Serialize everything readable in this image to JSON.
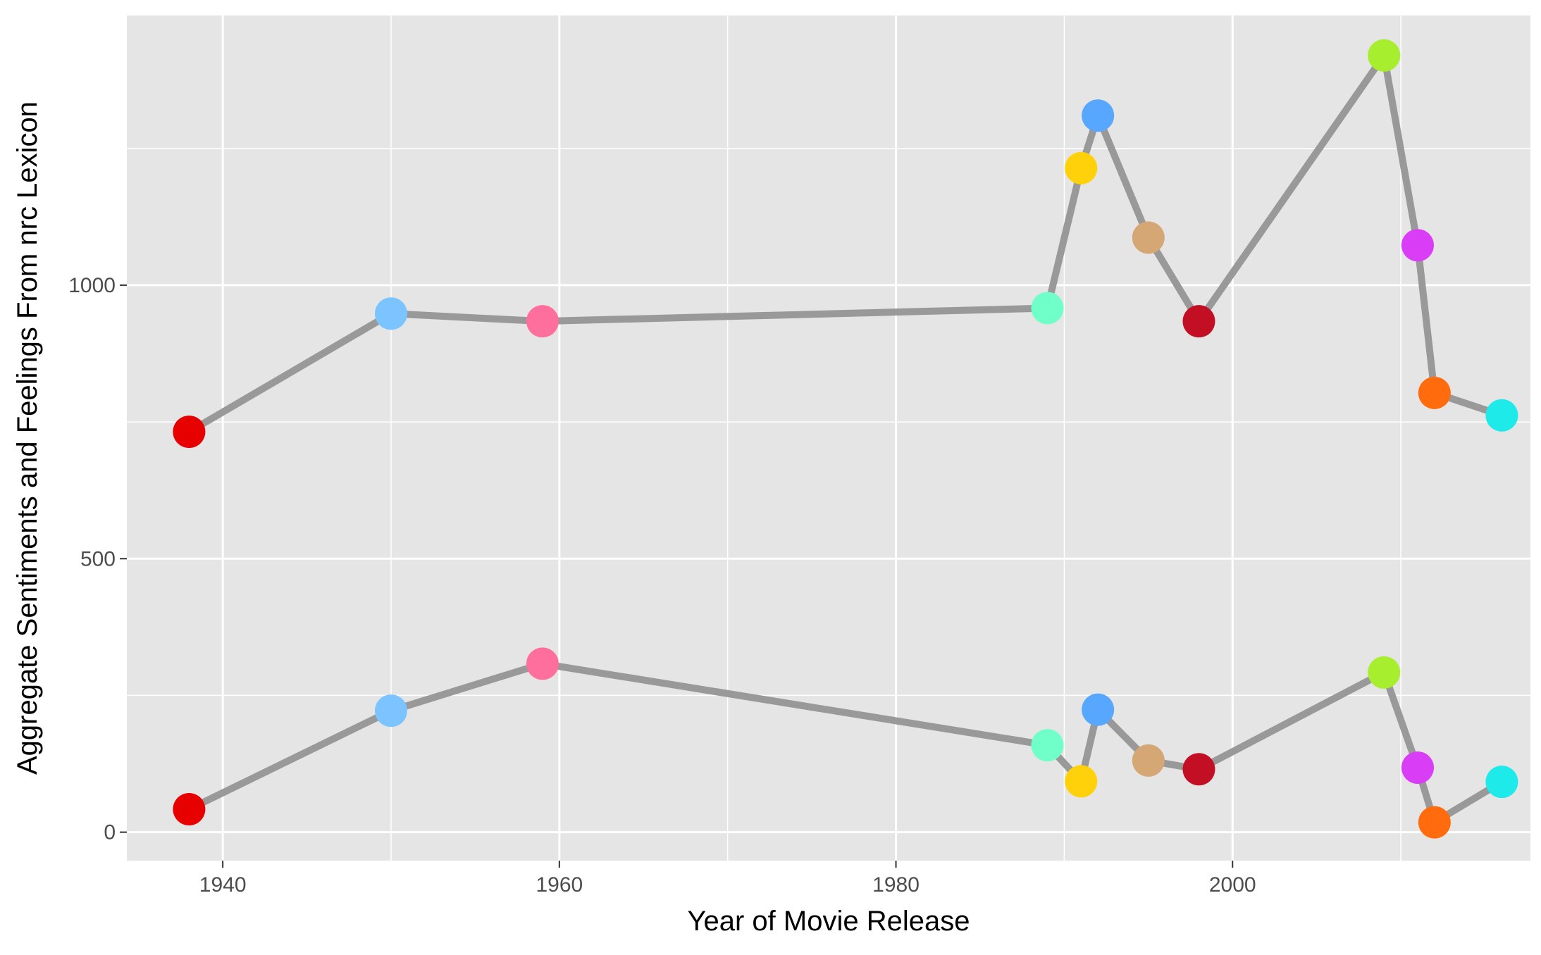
{
  "chart_data": {
    "type": "line",
    "title": "",
    "xlabel": "Year of Movie Release",
    "ylabel": "Aggregate Sentiments and Feelings From nrc Lexicon",
    "xlim": [
      1934.3,
      2017.7
    ],
    "ylim": [
      -52,
      1493
    ],
    "x_ticks": [
      1940,
      1960,
      1980,
      2000
    ],
    "x_tick_labels": [
      "1940",
      "1960",
      "1980",
      "2000"
    ],
    "x_minor_ticks": [
      1950,
      1970,
      1990,
      2010
    ],
    "y_ticks": [
      0,
      500,
      1000
    ],
    "y_tick_labels": [
      "0",
      "500",
      "1000"
    ],
    "y_minor_ticks": [
      250,
      750,
      1250
    ],
    "grid": true,
    "legend": "none",
    "line_color": "#999999",
    "panel_background": "#E5E5E5",
    "gridline_color": "#FFFFFF",
    "x": [
      1938,
      1950,
      1959,
      1989,
      1991,
      1992,
      1995,
      1998,
      2009,
      2011,
      2012,
      2016
    ],
    "point_colors": [
      "#E60000",
      "#7CC4FF",
      "#FF6F9E",
      "#71FFC9",
      "#FFD10A",
      "#58A7FF",
      "#D4A774",
      "#C20F23",
      "#A6EE2E",
      "#D93DF5",
      "#FF6B0D",
      "#1EEAE9"
    ],
    "series": [
      {
        "values": [
          732,
          948,
          934,
          958,
          1214,
          1310,
          1087,
          934,
          1420,
          1073,
          803,
          762
        ]
      },
      {
        "values": [
          42,
          222,
          308,
          159,
          93,
          224,
          131,
          115,
          292,
          118,
          18,
          92
        ]
      }
    ]
  }
}
